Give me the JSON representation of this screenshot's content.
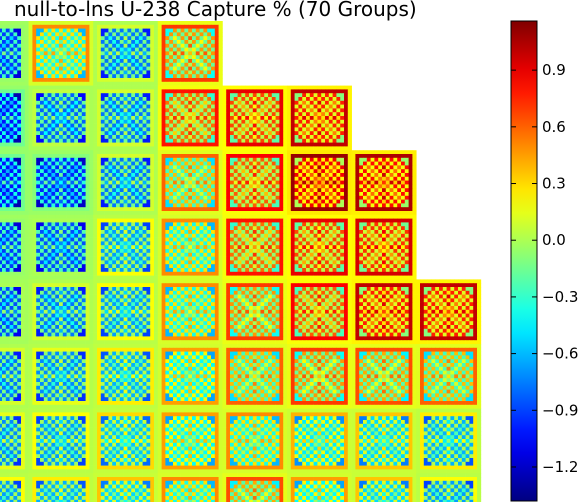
{
  "chart_data": {
    "type": "heatmap",
    "title": "null-to-lns U-238 Capture % (70 Groups)",
    "colormap": "jet",
    "colorbar": {
      "min": -1.38,
      "max": 1.16,
      "ticks": [
        0.9,
        0.6,
        0.3,
        0.0,
        -0.3,
        -0.6,
        -0.9,
        -1.2
      ],
      "tick_labels": [
        "0.9",
        "0.6",
        "0.3",
        "0.0",
        "−0.3",
        "−0.6",
        "−0.9",
        "−1.2"
      ]
    },
    "assembly_grid": {
      "columns": 8,
      "rows_visible": 8,
      "cells_per_assembly": 17,
      "assemblies": [
        [
          1,
          1,
          1,
          1,
          0,
          0,
          0,
          0
        ],
        [
          1,
          1,
          1,
          1,
          1,
          1,
          0,
          0
        ],
        [
          1,
          1,
          1,
          1,
          1,
          1,
          1,
          0
        ],
        [
          1,
          1,
          1,
          1,
          1,
          1,
          1,
          0
        ],
        [
          1,
          1,
          1,
          1,
          1,
          1,
          1,
          1
        ],
        [
          1,
          1,
          1,
          1,
          1,
          1,
          1,
          1
        ],
        [
          1,
          1,
          1,
          1,
          1,
          1,
          1,
          1
        ],
        [
          1,
          1,
          1,
          1,
          1,
          1,
          1,
          1
        ]
      ],
      "assembly_mean_values": [
        [
          -0.6,
          -0.05,
          -0.45,
          0.15,
          null,
          null,
          null,
          null
        ],
        [
          -0.7,
          -0.5,
          -0.45,
          0.25,
          0.35,
          0.45,
          null,
          null
        ],
        [
          -0.7,
          -0.65,
          -0.45,
          0.05,
          0.3,
          0.55,
          0.5,
          null
        ],
        [
          -0.6,
          -0.55,
          -0.35,
          -0.05,
          0.25,
          0.35,
          0.4,
          null
        ],
        [
          -0.55,
          -0.45,
          -0.35,
          -0.05,
          0.15,
          0.3,
          0.45,
          0.45
        ],
        [
          -0.45,
          -0.4,
          -0.3,
          -0.1,
          0.05,
          0.15,
          0.1,
          0.05
        ],
        [
          -0.4,
          -0.35,
          -0.25,
          -0.1,
          -0.05,
          -0.15,
          -0.2,
          -0.3
        ],
        [
          -0.35,
          -0.3,
          -0.2,
          -0.05,
          0.1,
          -0.1,
          -0.2,
          -0.35
        ]
      ]
    }
  }
}
